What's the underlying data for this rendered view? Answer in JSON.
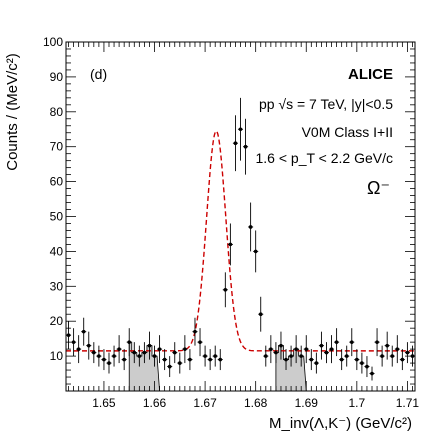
{
  "chart_data": {
    "type": "scatter",
    "panel_label": "(d)",
    "experiment": "ALICE",
    "annotations": {
      "line1": "pp √s = 7 TeV, |y|<0.5",
      "line2": "V0M Class I+II",
      "line3": "1.6 < p_T < 2.2 GeV/c",
      "particle": "Ω⁻"
    },
    "ylabel": "Counts / (MeV/c²)",
    "xlabel": "M_inv(Λ,K⁻) (GeV/c²)",
    "xlim": [
      1.6425,
      1.7115
    ],
    "ylim": [
      0,
      100
    ],
    "x_ticks": [
      1.65,
      1.66,
      1.67,
      1.68,
      1.69,
      1.7,
      1.71
    ],
    "x_tick_labels": [
      "1.65",
      "1.66",
      "1.67",
      "1.68",
      "1.69",
      "1.7",
      "1.71"
    ],
    "y_ticks": [
      10,
      20,
      30,
      40,
      50,
      60,
      70,
      80,
      90,
      100
    ],
    "y_tick_labels": [
      "10",
      "20",
      "30",
      "40",
      "50",
      "60",
      "70",
      "80",
      "90",
      "100"
    ],
    "grid": false,
    "colors": {
      "points": "#000000",
      "fit": "#cc0000",
      "sideband": "#cccccc"
    },
    "sidebands": [
      [
        1.655,
        1.661
      ],
      [
        1.684,
        1.69
      ]
    ],
    "series": [
      {
        "kind": "data_points",
        "x": [
          1.643,
          1.644,
          1.645,
          1.646,
          1.647,
          1.648,
          1.649,
          1.65,
          1.651,
          1.652,
          1.653,
          1.654,
          1.655,
          1.656,
          1.657,
          1.658,
          1.659,
          1.66,
          1.661,
          1.662,
          1.663,
          1.664,
          1.665,
          1.666,
          1.667,
          1.668,
          1.669,
          1.67,
          1.671,
          1.672,
          1.673,
          1.674,
          1.675,
          1.676,
          1.677,
          1.678,
          1.679,
          1.68,
          1.681,
          1.682,
          1.683,
          1.684,
          1.685,
          1.686,
          1.687,
          1.688,
          1.689,
          1.69,
          1.691,
          1.692,
          1.693,
          1.694,
          1.695,
          1.696,
          1.697,
          1.698,
          1.699,
          1.7,
          1.701,
          1.702,
          1.703,
          1.704,
          1.705,
          1.706,
          1.707,
          1.708,
          1.709,
          1.71,
          1.711
        ],
        "y": [
          16,
          14,
          12,
          17,
          13,
          11,
          10,
          9,
          8,
          10,
          12,
          9,
          14,
          11,
          10,
          11,
          13,
          10,
          12,
          9,
          7,
          11,
          8,
          12,
          9,
          17,
          14,
          10,
          9,
          10,
          9,
          29,
          42,
          71,
          75,
          70,
          47,
          40,
          22,
          10,
          12,
          11,
          13,
          9,
          10,
          12,
          10,
          12,
          9,
          8,
          13,
          11,
          12,
          14,
          9,
          10,
          14,
          9,
          8,
          7,
          5,
          14,
          10,
          13,
          10,
          12,
          9,
          11,
          10
        ],
        "yerr": [
          4,
          4,
          4,
          4,
          4,
          3,
          3,
          3,
          3,
          3,
          4,
          3,
          4,
          3,
          3,
          3,
          4,
          3,
          4,
          3,
          3,
          3,
          3,
          4,
          3,
          4,
          4,
          3,
          3,
          3,
          3,
          5,
          6,
          8,
          9,
          8,
          7,
          6,
          5,
          3,
          4,
          3,
          4,
          3,
          3,
          4,
          3,
          4,
          3,
          3,
          4,
          3,
          4,
          4,
          3,
          3,
          4,
          3,
          3,
          3,
          2,
          4,
          3,
          4,
          3,
          4,
          3,
          3,
          3
        ]
      },
      {
        "kind": "fit_curve",
        "style": "dashed",
        "background_level": 11.5,
        "peak_mean": 1.6722,
        "peak_sigma": 0.0019,
        "peak_amplitude": 63
      }
    ]
  }
}
